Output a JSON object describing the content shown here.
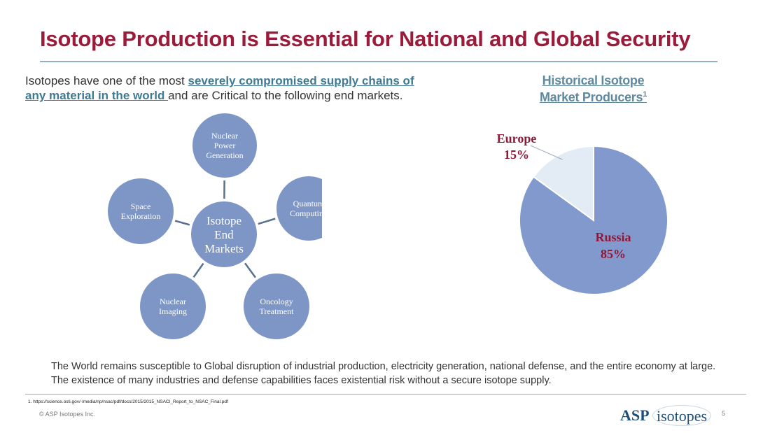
{
  "slide": {
    "title": "Isotope Production is Essential for National and Global Security",
    "intro": {
      "link_text_1": "severely compromised supply chains of",
      "link_text_2": "any material in the world ",
      "text_before": "Isotopes have one of the most ",
      "text_after": "and are Critical to the following end markets."
    },
    "diagram": {
      "center": [
        "Isotope",
        "End",
        "Markets"
      ],
      "nodes": [
        {
          "id": "nuclear-power",
          "lines": [
            "Nuclear",
            "Power",
            "Generation"
          ]
        },
        {
          "id": "quantum",
          "lines": [
            "Quantum",
            "Computing"
          ]
        },
        {
          "id": "oncology",
          "lines": [
            "Oncology",
            "Treatment"
          ]
        },
        {
          "id": "nuclear-imaging",
          "lines": [
            "Nuclear",
            "Imaging"
          ]
        },
        {
          "id": "space",
          "lines": [
            "Space",
            "Exploration"
          ]
        }
      ],
      "colors": {
        "circle": "#7d96c6",
        "line": "#59708f",
        "text": "#ffffff"
      }
    },
    "pie_title": {
      "line1": "Historical Isotope",
      "line2": "Market Producers",
      "superscript": "1"
    },
    "summary": "The World remains susceptible to Global disruption of industrial production, electricity generation, national defense, and the entire economy at large. The existence of many industries and defense capabilities faces existential risk without a secure isotope supply.",
    "footnote": "1. https://science.osti.gov/-/media/np/nsac/pdf/docs/2015/2015_NSACI_Report_to_NSAC_Final.pdf",
    "copyright": "© ASP Isotopes Inc.",
    "logo": {
      "asp": "ASP",
      "isotopes": "isotopes"
    },
    "page_number": "5"
  },
  "chart_data": {
    "type": "pie",
    "title": "Historical Isotope Market Producers",
    "slices": [
      {
        "label": "Russia",
        "value": 85,
        "display": "85%",
        "color": "#8199cc"
      },
      {
        "label": "Europe",
        "value": 15,
        "display": "15%",
        "color": "#e3ecf5"
      }
    ],
    "label_color": "#8f1838"
  }
}
